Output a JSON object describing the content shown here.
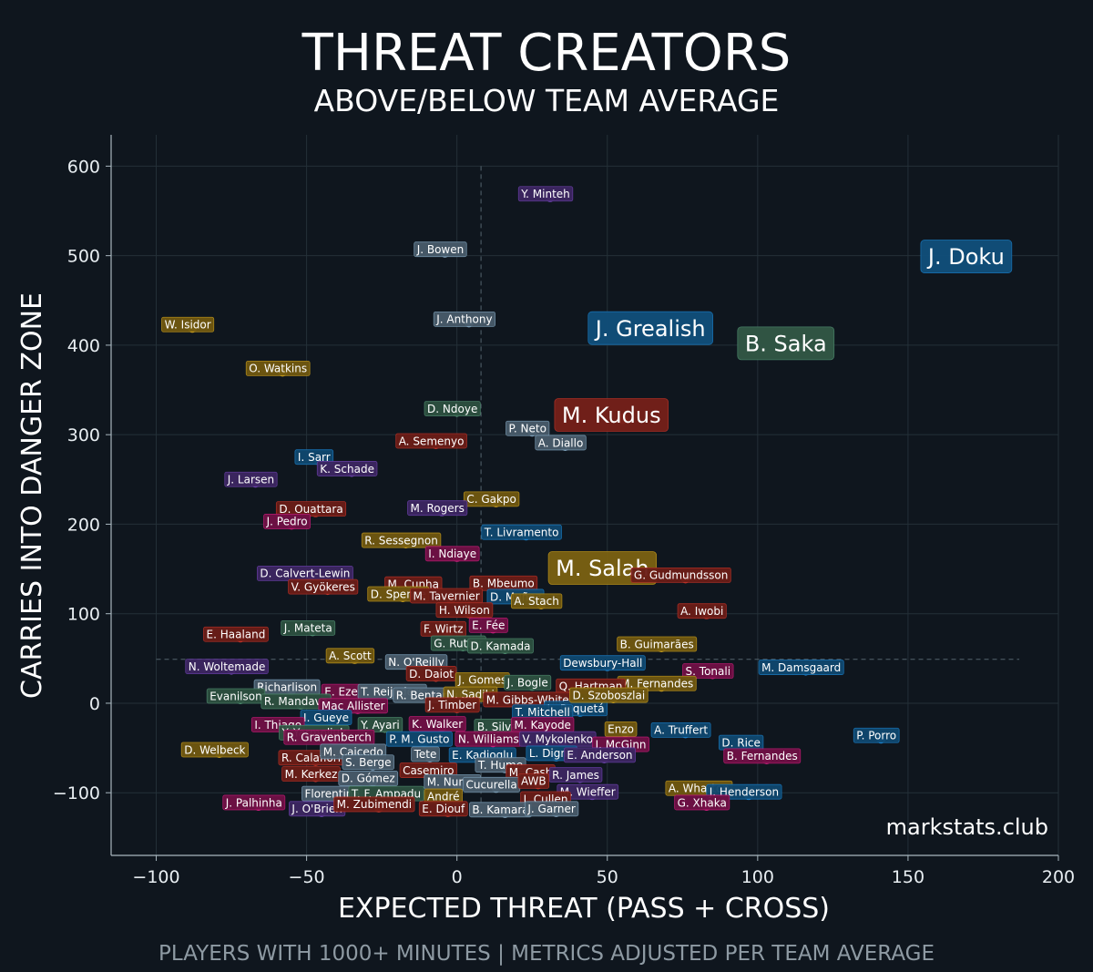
{
  "chart_data": {
    "type": "scatter",
    "title": "THREAT CREATORS",
    "subtitle": "ABOVE/BELOW TEAM AVERAGE",
    "xlabel": "EXPECTED THREAT (PASS + CROSS)",
    "ylabel": "CARRIES INTO DANGER ZONE",
    "watermark": "markstats.club",
    "footnote": "PLAYERS WITH 1000+ MINUTES | METRICS ADJUSTED PER TEAM AVERAGE",
    "xlim": [
      -115,
      200
    ],
    "ylim": [
      -170,
      635
    ],
    "xticks": [
      -100,
      -50,
      0,
      50,
      100,
      150,
      200
    ],
    "yticks": [
      -100,
      0,
      100,
      200,
      300,
      400,
      500,
      600
    ],
    "xtick_labels": [
      "−100",
      "−50",
      "0",
      "50",
      "100",
      "150",
      "200"
    ],
    "ytick_labels": [
      "−100",
      "0",
      "100",
      "200",
      "300",
      "400",
      "500",
      "600"
    ],
    "grid": true,
    "reference_lines": {
      "x": 8,
      "y": 49
    },
    "points": [
      {
        "name": "J. Doku",
        "x": 173,
        "y": 495,
        "color": "#1e8fe0",
        "big": true
      },
      {
        "name": "J. Grealish",
        "x": 68,
        "y": 415,
        "color": "#1e8fe0",
        "big": true
      },
      {
        "name": "B. Saka",
        "x": 113,
        "y": 398,
        "color": "#5aa07f",
        "big": true
      },
      {
        "name": "M. Kudus",
        "x": 55,
        "y": 318,
        "color": "#d63a2e",
        "big": true
      },
      {
        "name": "M. Salah",
        "x": 52,
        "y": 147,
        "color": "#e0b020",
        "big": true
      },
      {
        "name": "Y. Minteh",
        "x": 31,
        "y": 565,
        "color": "#7a4bc4"
      },
      {
        "name": "J. Bowen",
        "x": -4,
        "y": 503,
        "color": "#8fb6d4"
      },
      {
        "name": "W. Isidor",
        "x": -88,
        "y": 419,
        "color": "#e0b020"
      },
      {
        "name": "J. Anthony",
        "x": 4,
        "y": 425,
        "color": "#8fb6d4"
      },
      {
        "name": "O. Watkins",
        "x": -58,
        "y": 370,
        "color": "#e0b020"
      },
      {
        "name": "D. Ndoye",
        "x": 0,
        "y": 325,
        "color": "#5aa07f"
      },
      {
        "name": "P. Neto",
        "x": 25,
        "y": 303,
        "color": "#8fb6d4"
      },
      {
        "name": "A. Diallo",
        "x": 36,
        "y": 287,
        "color": "#8fb6d4"
      },
      {
        "name": "A. Semenyo",
        "x": -7,
        "y": 289,
        "color": "#d63a2e"
      },
      {
        "name": "I. Sarr",
        "x": -46,
        "y": 271,
        "color": "#1e8fe0"
      },
      {
        "name": "K. Schade",
        "x": -35,
        "y": 258,
        "color": "#7a4bc4"
      },
      {
        "name": "J. Larsen",
        "x": -67,
        "y": 246,
        "color": "#7a4bc4"
      },
      {
        "name": "C. Gakpo",
        "x": 13,
        "y": 224,
        "color": "#e0b020"
      },
      {
        "name": "M. Rogers",
        "x": -5,
        "y": 214,
        "color": "#7a4bc4"
      },
      {
        "name": "D. Ouattara",
        "x": -47,
        "y": 213,
        "color": "#d63a2e"
      },
      {
        "name": "J. Pedro",
        "x": -55,
        "y": 199,
        "color": "#e0208a"
      },
      {
        "name": "R. Sessegnon",
        "x": -17,
        "y": 178,
        "color": "#e0b020"
      },
      {
        "name": "T. Livramento",
        "x": 23,
        "y": 187,
        "color": "#1e8fe0"
      },
      {
        "name": "I. Ndiaye",
        "x": 0,
        "y": 163,
        "color": "#e0208a"
      },
      {
        "name": "G. Gudmundsson",
        "x": 76,
        "y": 139,
        "color": "#d63a2e"
      },
      {
        "name": "D. Calvert-Lewin",
        "x": -49,
        "y": 141,
        "color": "#7a4bc4"
      },
      {
        "name": "V. Gyökeres",
        "x": -43,
        "y": 126,
        "color": "#d63a2e"
      },
      {
        "name": "M. Cunha",
        "x": -13,
        "y": 129,
        "color": "#d63a2e"
      },
      {
        "name": "B. Mbeumo",
        "x": 17,
        "y": 130,
        "color": "#d63a2e"
      },
      {
        "name": "D. Spence",
        "x": -18,
        "y": 118,
        "color": "#e0b020"
      },
      {
        "name": "M. Tavernier",
        "x": -2,
        "y": 116,
        "color": "#d63a2e"
      },
      {
        "name": "D. Muñoz",
        "x": 21,
        "y": 115,
        "color": "#1e8fe0"
      },
      {
        "name": "A. Stach",
        "x": 28,
        "y": 110,
        "color": "#e0b020"
      },
      {
        "name": "H. Wilson",
        "x": 4,
        "y": 100,
        "color": "#d63a2e"
      },
      {
        "name": "A. Iwobi",
        "x": 83,
        "y": 99,
        "color": "#d63a2e"
      },
      {
        "name": "E. Haaland",
        "x": -72,
        "y": 73,
        "color": "#d63a2e"
      },
      {
        "name": "F. Wirtz",
        "x": -3,
        "y": 79,
        "color": "#d63a2e"
      },
      {
        "name": "E. Fée",
        "x": 12,
        "y": 83,
        "color": "#e0208a"
      },
      {
        "name": "J. Mateta",
        "x": -48,
        "y": 80,
        "color": "#5aa07f"
      },
      {
        "name": "B. Guimarães",
        "x": 68,
        "y": 62,
        "color": "#e0b020"
      },
      {
        "name": "G. Rutter",
        "x": 2,
        "y": 63,
        "color": "#5aa07f"
      },
      {
        "name": "D. Kamada",
        "x": 16,
        "y": 60,
        "color": "#5aa07f"
      },
      {
        "name": "A. Scott",
        "x": -34,
        "y": 49,
        "color": "#e0b020"
      },
      {
        "name": "S. Tonali",
        "x": 85,
        "y": 32,
        "color": "#e0208a"
      },
      {
        "name": "M. Damsgaard",
        "x": 116,
        "y": 36,
        "color": "#1e8fe0"
      },
      {
        "name": "N. O'Reilly",
        "x": -12,
        "y": 42,
        "color": "#8fb6d4"
      },
      {
        "name": "Dewsbury-Hall",
        "x": 50,
        "y": 41,
        "color": "#1e8fe0"
      },
      {
        "name": "N. Woltemade",
        "x": -75,
        "y": 37,
        "color": "#7a4bc4"
      },
      {
        "name": "D. Daiot",
        "x": -7,
        "y": 29,
        "color": "#d63a2e"
      },
      {
        "name": "Richarlison",
        "x": -55,
        "y": 14,
        "color": "#8fb6d4"
      },
      {
        "name": "M. Fernandes",
        "x": 68,
        "y": 18,
        "color": "#e0b020"
      },
      {
        "name": "J. Gomes",
        "x": 10,
        "y": 22,
        "color": "#e0b020"
      },
      {
        "name": "J. Bogle",
        "x": 25,
        "y": 19,
        "color": "#5aa07f"
      },
      {
        "name": "Q. Hartman",
        "x": 46,
        "y": 15,
        "color": "#d63a2e"
      },
      {
        "name": "Evanilson",
        "x": -72,
        "y": 4,
        "color": "#5aa07f"
      },
      {
        "name": "E. Eze",
        "x": -37,
        "y": 9,
        "color": "#e0208a"
      },
      {
        "name": "T. Reijnders",
        "x": -20,
        "y": 9,
        "color": "#8fb6d4"
      },
      {
        "name": "R. Bentancur",
        "x": -7,
        "y": 5,
        "color": "#8fb6d4"
      },
      {
        "name": "N. Sadiki",
        "x": 6,
        "y": 6,
        "color": "#e0b020"
      },
      {
        "name": "M. Gibbs-White",
        "x": 25,
        "y": 0,
        "color": "#d63a2e"
      },
      {
        "name": "L. Paquetá",
        "x": 41,
        "y": -10,
        "color": "#1e8fe0"
      },
      {
        "name": "D. Szoboszlai",
        "x": 52,
        "y": 5,
        "color": "#e0b020"
      },
      {
        "name": "R. Mandava",
        "x": -52,
        "y": -2,
        "color": "#5aa07f"
      },
      {
        "name": "Mac Allister",
        "x": -33,
        "y": -7,
        "color": "#e0208a"
      },
      {
        "name": "J. Timber",
        "x": 0,
        "y": -6,
        "color": "#d63a2e"
      },
      {
        "name": "T. Mitchell",
        "x": 30,
        "y": -14,
        "color": "#1e8fe0"
      },
      {
        "name": "I. Gueye",
        "x": -42,
        "y": -20,
        "color": "#1e8fe0"
      },
      {
        "name": "B. Silva",
        "x": 15,
        "y": -30,
        "color": "#5aa07f"
      },
      {
        "name": "I. Thiago",
        "x": -58,
        "y": -28,
        "color": "#e0208a"
      },
      {
        "name": "Y. Ayari",
        "x": -24,
        "y": -28,
        "color": "#5aa07f"
      },
      {
        "name": "K. Walker",
        "x": -5,
        "y": -27,
        "color": "#e0208a"
      },
      {
        "name": "M. Kayode",
        "x": 30,
        "y": -28,
        "color": "#e0208a"
      },
      {
        "name": "Enzo",
        "x": 56,
        "y": -33,
        "color": "#e0b020"
      },
      {
        "name": "A. Truffert",
        "x": 76,
        "y": -34,
        "color": "#1e8fe0"
      },
      {
        "name": "D. Rice",
        "x": 96,
        "y": -48,
        "color": "#1e8fe0"
      },
      {
        "name": "P. Porro",
        "x": 141,
        "y": -40,
        "color": "#1e8fe0"
      },
      {
        "name": "Y. Yarmoliuk",
        "x": -46,
        "y": -37,
        "color": "#5aa07f"
      },
      {
        "name": "R. Gravenberch",
        "x": -41,
        "y": -42,
        "color": "#e0208a"
      },
      {
        "name": "P. M. Gusto",
        "x": -11,
        "y": -44,
        "color": "#1e8fe0"
      },
      {
        "name": "N. Williams",
        "x": 12,
        "y": -44,
        "color": "#e0208a"
      },
      {
        "name": "V. Mykolenko",
        "x": 35,
        "y": -44,
        "color": "#7a4bc4"
      },
      {
        "name": "J. McGinn",
        "x": 56,
        "y": -50,
        "color": "#e0208a"
      },
      {
        "name": "B. Fernandes",
        "x": 103,
        "y": -63,
        "color": "#e0208a"
      },
      {
        "name": "D. Welbeck",
        "x": -79,
        "y": -56,
        "color": "#e0b020"
      },
      {
        "name": "R. Calafiori",
        "x": -47,
        "y": -65,
        "color": "#d63a2e"
      },
      {
        "name": "M. Caicedo",
        "x": -33,
        "y": -58,
        "color": "#8fb6d4"
      },
      {
        "name": "S. Berge",
        "x": -28,
        "y": -70,
        "color": "#8fb6d4"
      },
      {
        "name": "Tete",
        "x": -9,
        "y": -61,
        "color": "#8fb6d4"
      },
      {
        "name": "E. Kadioglu",
        "x": 10,
        "y": -62,
        "color": "#1e8fe0"
      },
      {
        "name": "L. Digne",
        "x": 33,
        "y": -60,
        "color": "#1e8fe0"
      },
      {
        "name": "E. Anderson",
        "x": 49,
        "y": -62,
        "color": "#7a4bc4"
      },
      {
        "name": "T. Hume",
        "x": 16,
        "y": -73,
        "color": "#8fb6d4"
      },
      {
        "name": "M. Kerkez",
        "x": -47,
        "y": -83,
        "color": "#d63a2e"
      },
      {
        "name": "Casemiro",
        "x": -8,
        "y": -79,
        "color": "#d63a2e"
      },
      {
        "name": "M. Cash",
        "x": 26,
        "y": -81,
        "color": "#d63a2e"
      },
      {
        "name": "R. James",
        "x": 41,
        "y": -84,
        "color": "#7a4bc4"
      },
      {
        "name": "D. Gómez",
        "x": -28,
        "y": -88,
        "color": "#8fb6d4"
      },
      {
        "name": "M. Nunes",
        "x": 0,
        "y": -92,
        "color": "#8fb6d4"
      },
      {
        "name": "Cucurella",
        "x": 13,
        "y": -95,
        "color": "#8fb6d4"
      },
      {
        "name": "AWB",
        "x": 27,
        "y": -91,
        "color": "#d63a2e"
      },
      {
        "name": "M. Wieffer",
        "x": 45,
        "y": -103,
        "color": "#7a4bc4"
      },
      {
        "name": "A. Wharton",
        "x": 82,
        "y": -99,
        "color": "#e0b020"
      },
      {
        "name": "J. Henderson",
        "x": 97,
        "y": -103,
        "color": "#1e8fe0"
      },
      {
        "name": "Florentino",
        "x": -40,
        "y": -105,
        "color": "#8fb6d4"
      },
      {
        "name": "T. F. Ampadu",
        "x": -22,
        "y": -105,
        "color": "#5aa07f"
      },
      {
        "name": "André",
        "x": -3,
        "y": -108,
        "color": "#e0b020"
      },
      {
        "name": "J. Cullen",
        "x": 31,
        "y": -111,
        "color": "#d63a2e"
      },
      {
        "name": "G. Xhaka",
        "x": 83,
        "y": -115,
        "color": "#e0208a"
      },
      {
        "name": "J. Palhinha",
        "x": -66,
        "y": -115,
        "color": "#e0208a"
      },
      {
        "name": "J. O'Brien",
        "x": -45,
        "y": -122,
        "color": "#7a4bc4"
      },
      {
        "name": "M. Zubimendi",
        "x": -26,
        "y": -117,
        "color": "#d63a2e"
      },
      {
        "name": "E. Diouf",
        "x": -3,
        "y": -122,
        "color": "#d63a2e"
      },
      {
        "name": "B. Kamara",
        "x": 16,
        "y": -123,
        "color": "#8fb6d4"
      },
      {
        "name": "J. Garner",
        "x": 33,
        "y": -122,
        "color": "#8fb6d4"
      }
    ]
  }
}
